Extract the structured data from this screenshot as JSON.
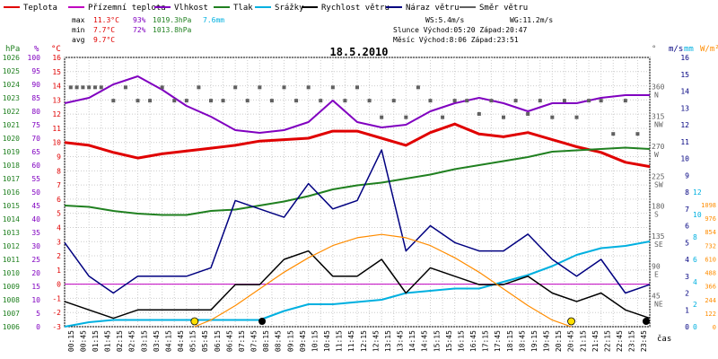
{
  "chart_data": {
    "type": "line",
    "title": "18.5.2010",
    "legend": [
      {
        "name": "Teplota",
        "color": "#e00000"
      },
      {
        "name": "Přízemní teplota",
        "color": "#c000c0"
      },
      {
        "name": "Vlhkost",
        "color": "#8000c0"
      },
      {
        "name": "Tlak",
        "color": "#208020"
      },
      {
        "name": "Srážky",
        "color": "#00b0e0"
      },
      {
        "name": "Rychlost větru",
        "color": "#000000"
      },
      {
        "name": "Náraz větru",
        "color": "#000080"
      },
      {
        "name": "Směr větru",
        "color": "#606060"
      }
    ],
    "stats": {
      "max": {
        "label": "max",
        "temp": "11.3°C",
        "hum": "93%",
        "press": "1019.3hPa",
        "rain": "7.6mm"
      },
      "min": {
        "label": "min",
        "temp": "7.7°C",
        "hum": "72%",
        "press": "1013.8hPa"
      },
      "avg": {
        "label": "avg",
        "temp": "9.7°C"
      },
      "ws": "WS:5.4m/s",
      "wg": "WG:11.2m/s",
      "sun": "Slunce Východ:05:20  Západ:20:47",
      "moon": "Měsíc  Východ:8:06   Západ:23:51"
    },
    "axes": {
      "hpa": {
        "unit": "hPa",
        "ticks": [
          "1026",
          "1025",
          "1024",
          "1023",
          "1022",
          "1021",
          "1020",
          "1019",
          "1018",
          "1017",
          "1016",
          "1015",
          "1014",
          "1013",
          "1012",
          "1011",
          "1010",
          "1009",
          "1008",
          "1007",
          "1006"
        ]
      },
      "pct": {
        "unit": "%",
        "ticks": [
          "100",
          "95",
          "90",
          "85",
          "80",
          "75",
          "70",
          "65",
          "60",
          "55",
          "50",
          "45",
          "40",
          "35",
          "30",
          "25",
          "20",
          "15",
          "10",
          "5",
          "0"
        ]
      },
      "temp": {
        "unit": "°C",
        "ticks": [
          "16",
          "15",
          "14",
          "13",
          "12",
          "11",
          "10",
          "9",
          "8",
          "7",
          "6",
          "5",
          "4",
          "3",
          "2",
          "1",
          "0",
          "-1",
          "-2",
          "-3"
        ]
      },
      "dir": {
        "unit": "°",
        "ticks": [
          {
            "deg": "360",
            "label": "N"
          },
          {
            "deg": "315",
            "label": "NW"
          },
          {
            "deg": "270",
            "label": "W"
          },
          {
            "deg": "225",
            "label": "SW"
          },
          {
            "deg": "180",
            "label": "S"
          },
          {
            "deg": "135",
            "label": "SE"
          },
          {
            "deg": "90",
            "label": "E"
          },
          {
            "deg": "45",
            "label": "NE"
          }
        ]
      },
      "ms": {
        "unit": "m/s",
        "ticks": [
          "16",
          "15",
          "14",
          "13",
          "12",
          "11",
          "10",
          "9",
          "8",
          "7",
          "6",
          "5",
          "4",
          "3",
          "2",
          "1",
          "0"
        ]
      },
      "mm": {
        "unit": "mm",
        "ticks": [
          "12",
          "10",
          "8",
          "6",
          "4",
          "2",
          "0"
        ]
      },
      "wm": {
        "unit": "W/m²",
        "ticks": [
          "1098",
          "976",
          "854",
          "732",
          "610",
          "488",
          "366",
          "244",
          "122",
          "0"
        ]
      },
      "x": {
        "label": "čas",
        "ticks": [
          "00:15",
          "00:45",
          "01:15",
          "01:45",
          "02:15",
          "02:45",
          "03:15",
          "03:45",
          "04:15",
          "04:45",
          "05:15",
          "05:45",
          "06:15",
          "06:45",
          "07:15",
          "07:45",
          "08:15",
          "08:45",
          "09:15",
          "09:45",
          "10:15",
          "10:45",
          "11:15",
          "11:45",
          "12:15",
          "12:45",
          "13:15",
          "13:45",
          "14:15",
          "14:45",
          "15:15",
          "15:45",
          "16:15",
          "16:45",
          "17:15",
          "17:45",
          "18:15",
          "18:45",
          "19:15",
          "19:45",
          "20:15",
          "20:45",
          "21:15",
          "21:45",
          "22:15",
          "22:45",
          "23:15",
          "23:45"
        ]
      }
    },
    "series": [
      {
        "name": "Teplota",
        "unit": "°C",
        "color": "#e00000",
        "x": [
          0,
          1,
          2,
          3,
          4,
          5,
          6,
          7,
          8,
          9,
          10,
          11,
          12,
          13,
          14,
          15,
          16,
          17,
          18,
          19,
          20,
          21,
          22,
          23,
          24
        ],
        "values": [
          10.0,
          9.8,
          9.3,
          8.9,
          9.2,
          9.4,
          9.6,
          9.8,
          10.1,
          10.2,
          10.3,
          10.8,
          10.8,
          10.3,
          9.8,
          10.7,
          11.3,
          10.6,
          10.4,
          10.7,
          10.2,
          9.7,
          9.3,
          8.6,
          8.3
        ]
      },
      {
        "name": "Vlhkost",
        "unit": "%",
        "color": "#8000c0",
        "x": [
          0,
          1,
          2,
          3,
          4,
          5,
          6,
          7,
          8,
          9,
          10,
          11,
          12,
          13,
          14,
          15,
          16,
          17,
          18,
          19,
          20,
          21,
          22,
          23,
          24
        ],
        "values": [
          83,
          85,
          90,
          93,
          88,
          82,
          78,
          73,
          72,
          73,
          76,
          84,
          76,
          74,
          75,
          80,
          83,
          85,
          83,
          80,
          83,
          83,
          85,
          86,
          86
        ]
      },
      {
        "name": "Tlak",
        "unit": "hPa",
        "color": "#208020",
        "x": [
          0,
          1,
          2,
          3,
          4,
          5,
          6,
          7,
          8,
          9,
          10,
          11,
          12,
          13,
          14,
          15,
          16,
          17,
          18,
          19,
          20,
          21,
          22,
          23,
          24
        ],
        "values": [
          1015.0,
          1014.9,
          1014.6,
          1014.4,
          1014.3,
          1014.3,
          1014.6,
          1014.7,
          1015.0,
          1015.3,
          1015.7,
          1016.2,
          1016.5,
          1016.7,
          1017.0,
          1017.3,
          1017.7,
          1018.0,
          1018.3,
          1018.6,
          1019.0,
          1019.1,
          1019.2,
          1019.3,
          1019.2
        ]
      },
      {
        "name": "Srážky",
        "unit": "mm",
        "color": "#00b0e0",
        "x": [
          0,
          1,
          2,
          3,
          4,
          5,
          6,
          7,
          8,
          9,
          10,
          11,
          12,
          13,
          14,
          15,
          16,
          17,
          18,
          19,
          20,
          21,
          22,
          23,
          24
        ],
        "values": [
          0,
          0.4,
          0.6,
          0.6,
          0.6,
          0.6,
          0.6,
          0.6,
          0.6,
          1.4,
          2.0,
          2.0,
          2.2,
          2.4,
          3.0,
          3.2,
          3.4,
          3.4,
          4.0,
          4.6,
          5.4,
          6.4,
          7.0,
          7.2,
          7.6
        ]
      },
      {
        "name": "Rychlost větru",
        "unit": "m/s",
        "color": "#000000",
        "x": [
          0,
          1,
          2,
          3,
          4,
          5,
          6,
          7,
          8,
          9,
          10,
          11,
          12,
          13,
          14,
          15,
          16,
          17,
          18,
          19,
          20,
          21,
          22,
          23,
          24
        ],
        "values": [
          1.5,
          1.0,
          0.5,
          1.0,
          1.0,
          1.0,
          1.0,
          2.5,
          2.5,
          4.0,
          4.5,
          3.0,
          3.0,
          4.0,
          2.0,
          3.5,
          3.0,
          2.5,
          2.5,
          3.0,
          2.0,
          1.5,
          2.0,
          1.0,
          0.5
        ]
      },
      {
        "name": "Náraz větru",
        "unit": "m/s",
        "color": "#000080",
        "x": [
          0,
          1,
          2,
          3,
          4,
          5,
          6,
          7,
          8,
          9,
          10,
          11,
          12,
          13,
          14,
          15,
          16,
          17,
          18,
          19,
          20,
          21,
          22,
          23,
          24
        ],
        "values": [
          5.0,
          3.0,
          2.0,
          3.0,
          3.0,
          3.0,
          3.5,
          7.5,
          7.0,
          6.5,
          8.5,
          7.0,
          7.5,
          10.5,
          4.5,
          6.0,
          5.0,
          4.5,
          4.5,
          5.5,
          4.0,
          3.0,
          4.0,
          2.0,
          2.5
        ]
      },
      {
        "name": "Solar",
        "unit": "W/m²",
        "color": "#ff8c00",
        "x": [
          5.33,
          6,
          7,
          8,
          9,
          10,
          11,
          12,
          13,
          14,
          15,
          16,
          17,
          18,
          19,
          20,
          20.78
        ],
        "values": [
          0,
          60,
          190,
          340,
          490,
          620,
          730,
          800,
          830,
          800,
          730,
          620,
          490,
          340,
          190,
          60,
          0
        ]
      }
    ],
    "wind_direction": {
      "name": "Směr větru",
      "unit": "°",
      "x": [
        0.25,
        0.5,
        0.75,
        1,
        1.25,
        1.5,
        2,
        2.5,
        3,
        3.5,
        4,
        4.5,
        5,
        5.5,
        6,
        6.5,
        7,
        7.5,
        8,
        8.5,
        9,
        9.5,
        10,
        10.5,
        11,
        11.5,
        12,
        12.5,
        13,
        13.5,
        14,
        14.5,
        15,
        15.5,
        16,
        16.5,
        17,
        17.5,
        18,
        18.5,
        19,
        19.5,
        20,
        20.5,
        21,
        21.5,
        22,
        22.5,
        23,
        23.5
      ],
      "values": [
        360,
        360,
        360,
        360,
        360,
        360,
        340,
        360,
        340,
        340,
        360,
        340,
        340,
        360,
        340,
        340,
        360,
        340,
        360,
        340,
        360,
        340,
        360,
        340,
        360,
        340,
        360,
        340,
        315,
        340,
        315,
        360,
        340,
        315,
        340,
        340,
        320,
        340,
        315,
        340,
        320,
        340,
        315,
        340,
        315,
        340,
        340,
        290,
        340,
        290
      ]
    },
    "ground_temp": {
      "name": "Přízemní teplota",
      "unit": "°C",
      "value": 0
    }
  }
}
